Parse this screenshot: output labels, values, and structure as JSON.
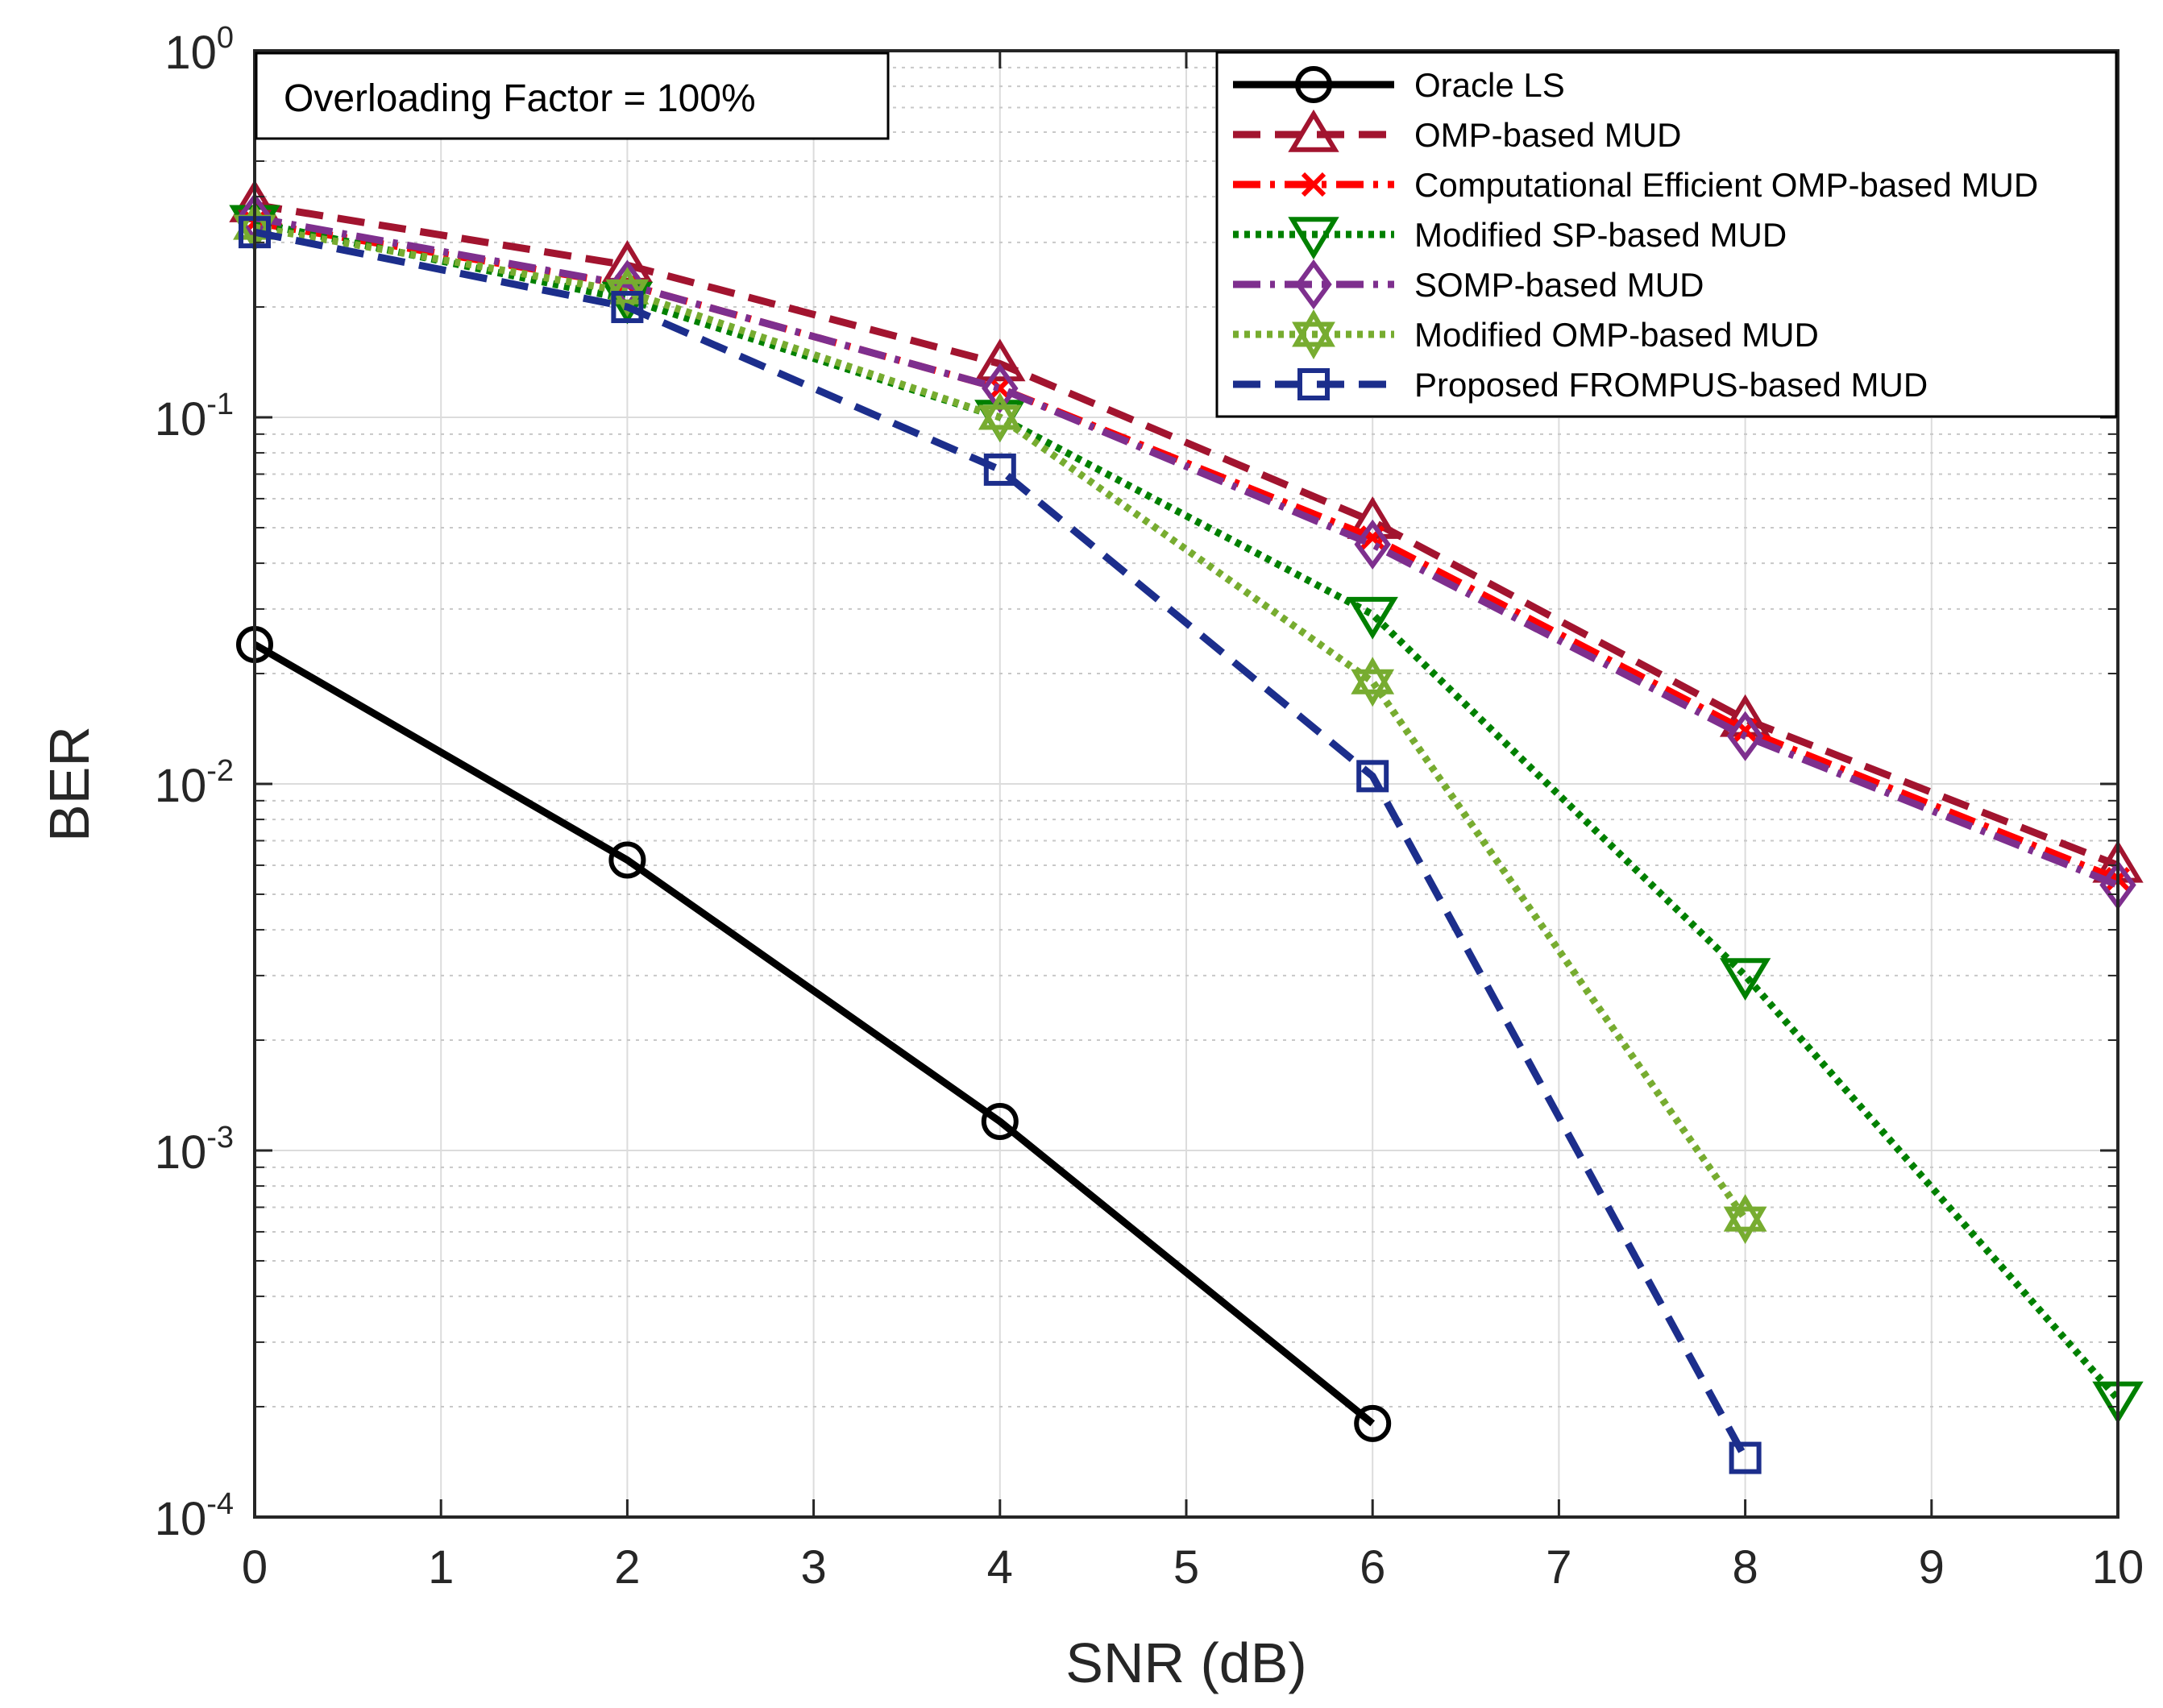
{
  "chart_data": {
    "type": "line",
    "xlabel": "SNR (dB)",
    "ylabel": "BER",
    "yscale": "log",
    "xlim": [
      0,
      10
    ],
    "ylim": [
      0.0001,
      1
    ],
    "xticks": [
      0,
      1,
      2,
      3,
      4,
      5,
      6,
      7,
      8,
      9,
      10
    ],
    "yticks": [
      {
        "value": 1,
        "base": "10",
        "exp": "0"
      },
      {
        "value": 0.1,
        "base": "10",
        "exp": "-1"
      },
      {
        "value": 0.01,
        "base": "10",
        "exp": "-2"
      },
      {
        "value": 0.001,
        "base": "10",
        "exp": "-3"
      },
      {
        "value": 0.0001,
        "base": "10",
        "exp": "-4"
      }
    ],
    "grid": true,
    "legend_position": "top-right",
    "annotation": "Overloading Factor = 100%",
    "series": [
      {
        "name": "Oracle LS",
        "color": "#000000",
        "dash": "solid",
        "marker": "circle",
        "x": [
          0,
          2,
          4,
          6
        ],
        "y": [
          0.024,
          0.0062,
          0.0012,
          0.00018
        ]
      },
      {
        "name": "OMP-based MUD",
        "color": "#A2142F",
        "dash": "dashed",
        "marker": "triangle-up",
        "x": [
          0,
          2,
          4,
          6,
          8,
          10
        ],
        "y": [
          0.38,
          0.26,
          0.14,
          0.052,
          0.015,
          0.006
        ]
      },
      {
        "name": "Computational Efficient OMP-based MUD",
        "color": "#FF0000",
        "dash": "dashdot",
        "marker": "x",
        "x": [
          0,
          2,
          4,
          6,
          8,
          10
        ],
        "y": [
          0.34,
          0.23,
          0.12,
          0.047,
          0.014,
          0.0055
        ]
      },
      {
        "name": "Modified SP-based MUD",
        "color": "#008000",
        "dash": "dotted",
        "marker": "triangle-down",
        "x": [
          0,
          2,
          4,
          6,
          8,
          10
        ],
        "y": [
          0.34,
          0.21,
          0.1,
          0.029,
          0.003,
          0.00021
        ]
      },
      {
        "name": "SOMP-based MUD",
        "color": "#7E2F8E",
        "dash": "dashdot",
        "marker": "diamond",
        "x": [
          0,
          2,
          4,
          6,
          8,
          10
        ],
        "y": [
          0.35,
          0.23,
          0.12,
          0.045,
          0.0135,
          0.0053
        ]
      },
      {
        "name": " Modified OMP-based MUD",
        "color": "#77AC30",
        "dash": "dotted",
        "marker": "hexagram",
        "x": [
          0,
          2,
          4,
          6,
          8
        ],
        "y": [
          0.33,
          0.22,
          0.1,
          0.019,
          0.00065
        ]
      },
      {
        "name": "Proposed FROMPUS-based MUD",
        "color": "#1C2E8C",
        "dash": "dashed",
        "marker": "square",
        "x": [
          0,
          2,
          4,
          6,
          8
        ],
        "y": [
          0.32,
          0.2,
          0.072,
          0.0105,
          0.000145
        ]
      }
    ]
  }
}
